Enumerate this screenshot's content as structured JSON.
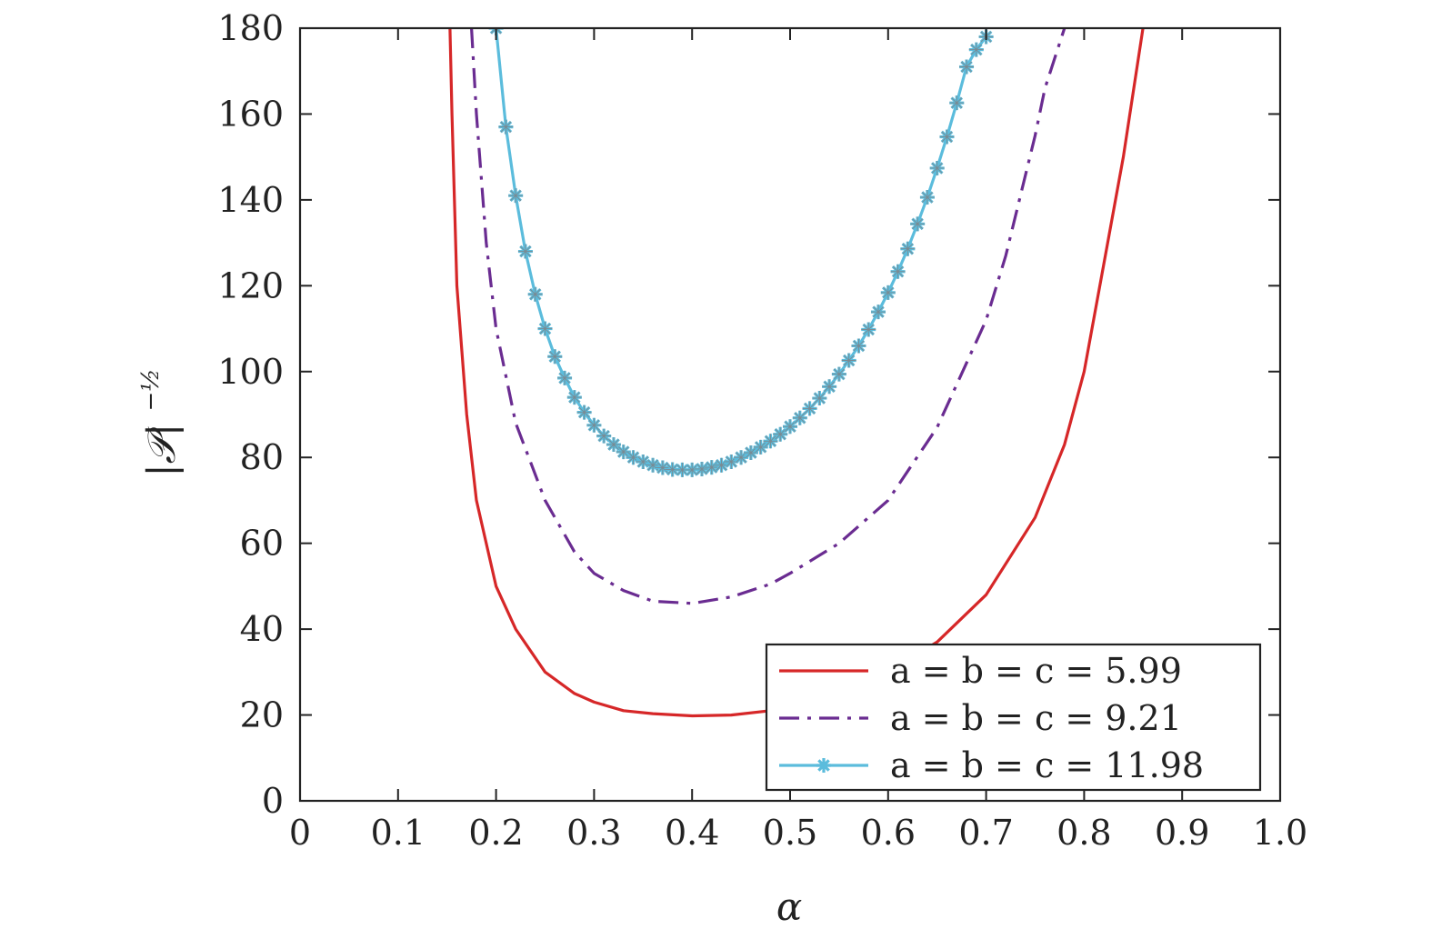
{
  "chart_data": {
    "type": "line",
    "xlabel": "α",
    "ylabel": "|𝒫|",
    "ylabel_superscript": "−½",
    "xlim": [
      0,
      1.0
    ],
    "ylim": [
      0,
      180
    ],
    "x_ticks": [
      0,
      0.1,
      0.2,
      0.3,
      0.4,
      0.5,
      0.6,
      0.7,
      0.8,
      0.9,
      1.0
    ],
    "x_tick_labels": [
      "0",
      "0.1",
      "0.2",
      "0.3",
      "0.4",
      "0.5",
      "0.6",
      "0.7",
      "0.8",
      "0.9",
      "1.0"
    ],
    "y_ticks": [
      0,
      20,
      40,
      60,
      80,
      100,
      120,
      140,
      160,
      180
    ],
    "y_tick_labels": [
      "0",
      "20",
      "40",
      "60",
      "80",
      "100",
      "120",
      "140",
      "160",
      "180"
    ],
    "grid": false,
    "legend_position": "bottom-right",
    "series": [
      {
        "name": "a = b = c = 5.99",
        "color": "#d62728",
        "style": "solid",
        "marker": "none",
        "x": [
          0.153,
          0.155,
          0.16,
          0.17,
          0.18,
          0.2,
          0.22,
          0.25,
          0.28,
          0.3,
          0.33,
          0.36,
          0.4,
          0.44,
          0.48,
          0.5,
          0.55,
          0.6,
          0.65,
          0.7,
          0.75,
          0.78,
          0.8,
          0.82,
          0.84,
          0.86
        ],
        "y": [
          180,
          160,
          120,
          90,
          70,
          50,
          40,
          30,
          25,
          23,
          21,
          20.3,
          19.8,
          20.0,
          21,
          22,
          25,
          30,
          37,
          48,
          66,
          83,
          100,
          125,
          150,
          180
        ]
      },
      {
        "name": "a = b = c = 9.21",
        "color": "#6a2c91",
        "style": "dashdot",
        "marker": "none",
        "x": [
          0.175,
          0.18,
          0.19,
          0.2,
          0.22,
          0.25,
          0.28,
          0.3,
          0.33,
          0.36,
          0.4,
          0.44,
          0.48,
          0.5,
          0.55,
          0.6,
          0.65,
          0.7,
          0.72,
          0.75,
          0.76,
          0.78
        ],
        "y": [
          180,
          160,
          130,
          110,
          88,
          70,
          58,
          53,
          49,
          46.5,
          46,
          47.5,
          50.5,
          53,
          60,
          70,
          87,
          112,
          127,
          155,
          166,
          180
        ]
      },
      {
        "name": "a = b = c = 11.98",
        "color": "#5bbcdc",
        "style": "solid",
        "marker": "star",
        "x": [
          0.2,
          0.21,
          0.22,
          0.23,
          0.24,
          0.25,
          0.26,
          0.27,
          0.28,
          0.29,
          0.3,
          0.31,
          0.32,
          0.33,
          0.34,
          0.35,
          0.36,
          0.37,
          0.38,
          0.39,
          0.4,
          0.41,
          0.42,
          0.43,
          0.44,
          0.45,
          0.46,
          0.47,
          0.48,
          0.49,
          0.5,
          0.51,
          0.52,
          0.53,
          0.54,
          0.55,
          0.56,
          0.57,
          0.58,
          0.59,
          0.6,
          0.61,
          0.62,
          0.63,
          0.64,
          0.65,
          0.66,
          0.67,
          0.68,
          0.69,
          0.7
        ],
        "y": [
          180,
          157,
          141,
          128,
          118,
          110,
          103.5,
          98.5,
          94,
          90.5,
          87.5,
          85,
          83,
          81.3,
          80,
          79,
          78.2,
          77.6,
          77.2,
          77.1,
          77.1,
          77.3,
          77.7,
          78.2,
          79,
          80,
          81.1,
          82.4,
          83.8,
          85.4,
          87.2,
          89.2,
          91.4,
          93.8,
          96.5,
          99.4,
          102.6,
          106,
          109.8,
          113.9,
          118.4,
          123.3,
          128.6,
          134.4,
          140.6,
          147.4,
          154.7,
          162.6,
          171,
          175,
          178
        ]
      }
    ]
  }
}
